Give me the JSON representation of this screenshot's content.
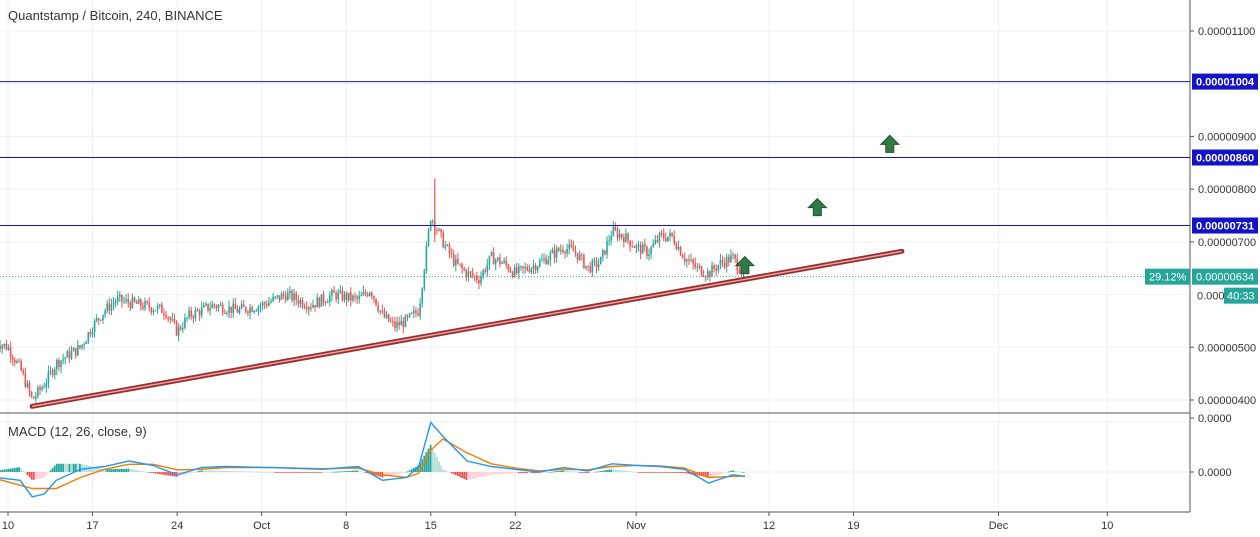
{
  "title": "Quantstamp / Bitcoin, 240, BINANCE",
  "macd_title": "MACD (12, 26, close, 9)",
  "colors": {
    "up": "#26a69a",
    "down": "#ef5350",
    "hline": "#1212c8",
    "trendline": "#9b2a2a",
    "arrow": "#2f7a45",
    "macd": "#2196f3",
    "signal": "#f57c00",
    "grid": "#eef0f3",
    "axis_text": "#333333",
    "price_label": "#26a69a"
  },
  "chart_data": [
    {
      "type": "candlestick",
      "title": "Quantstamp / Bitcoin, 240, BINANCE",
      "y_ticks": [
        "0.00001100",
        "0.00000900",
        "0.00000800",
        "0.00000700",
        "0.00000500",
        "0.00000400"
      ],
      "ylim": [
        3.8e-06,
        1.15e-05
      ],
      "x_ticks": [
        "10",
        "17",
        "24",
        "Oct",
        "8",
        "15",
        "22",
        "Nov",
        "12",
        "19",
        "Dec",
        "10"
      ],
      "horizontal_levels": [
        {
          "value": 1.004e-05,
          "label": "0.00001004"
        },
        {
          "value": 8.6e-06,
          "label": "0.00000860"
        },
        {
          "value": 7.31e-06,
          "label": "0.00000731"
        }
      ],
      "last_price": {
        "value": 6.34e-06,
        "label": "0.00000634",
        "change": "29.12%",
        "countdown": "40:33",
        "partial_label": "0.000"
      },
      "trendline": {
        "from": {
          "x": "Sep 12",
          "y": 3.88e-06
        },
        "to": {
          "x": "Nov 23",
          "y": 6.82e-06
        }
      },
      "arrows_up": [
        {
          "x": "Nov 10",
          "y": 6.55e-06
        },
        {
          "x": "Nov 16",
          "y": 7.65e-06
        },
        {
          "x": "Nov 22",
          "y": 8.85e-06
        }
      ],
      "price_path": [
        {
          "x": "Sep 9",
          "y": 5.1e-06
        },
        {
          "x": "Sep 10",
          "y": 5e-06
        },
        {
          "x": "Sep 11",
          "y": 4.6e-06
        },
        {
          "x": "Sep 12",
          "y": 4e-06
        },
        {
          "x": "Sep 13",
          "y": 4.3e-06
        },
        {
          "x": "Sep 14",
          "y": 4.7e-06
        },
        {
          "x": "Sep 16",
          "y": 5e-06
        },
        {
          "x": "Sep 17",
          "y": 5.4e-06
        },
        {
          "x": "Sep 18",
          "y": 5.7e-06
        },
        {
          "x": "Sep 19",
          "y": 5.9e-06
        },
        {
          "x": "Sep 21",
          "y": 5.8e-06
        },
        {
          "x": "Sep 23",
          "y": 5.7e-06
        },
        {
          "x": "Sep 24",
          "y": 5.3e-06
        },
        {
          "x": "Sep 25",
          "y": 5.6e-06
        },
        {
          "x": "Sep 27",
          "y": 5.8e-06
        },
        {
          "x": "Sep 29",
          "y": 5.7e-06
        },
        {
          "x": "Oct 1",
          "y": 5.8e-06
        },
        {
          "x": "Oct 3",
          "y": 6e-06
        },
        {
          "x": "Oct 5",
          "y": 5.8e-06
        },
        {
          "x": "Oct 7",
          "y": 6e-06
        },
        {
          "x": "Oct 9",
          "y": 5.9e-06
        },
        {
          "x": "Oct 10",
          "y": 6.1e-06
        },
        {
          "x": "Oct 11",
          "y": 5.6e-06
        },
        {
          "x": "Oct 12",
          "y": 5.4e-06
        },
        {
          "x": "Oct 13",
          "y": 5.5e-06
        },
        {
          "x": "Oct 14",
          "y": 5.7e-06
        },
        {
          "x": "Oct 15",
          "y": 7.5e-06
        },
        {
          "x": "Oct 16",
          "y": 7e-06
        },
        {
          "x": "Oct 17",
          "y": 6.6e-06
        },
        {
          "x": "Oct 18",
          "y": 6.4e-06
        },
        {
          "x": "Oct 19",
          "y": 6.3e-06
        },
        {
          "x": "Oct 20",
          "y": 6.7e-06
        },
        {
          "x": "Oct 21",
          "y": 6.6e-06
        },
        {
          "x": "Oct 22",
          "y": 6.4e-06
        },
        {
          "x": "Oct 24",
          "y": 6.6e-06
        },
        {
          "x": "Oct 26",
          "y": 6.9e-06
        },
        {
          "x": "Oct 27",
          "y": 6.8e-06
        },
        {
          "x": "Oct 28",
          "y": 6.5e-06
        },
        {
          "x": "Oct 29",
          "y": 6.6e-06
        },
        {
          "x": "Oct 30",
          "y": 7.2e-06
        },
        {
          "x": "Oct 31",
          "y": 7.1e-06
        },
        {
          "x": "Nov 1",
          "y": 6.9e-06
        },
        {
          "x": "Nov 2",
          "y": 6.8e-06
        },
        {
          "x": "Nov 3",
          "y": 7.1e-06
        },
        {
          "x": "Nov 4",
          "y": 7.1e-06
        },
        {
          "x": "Nov 5",
          "y": 6.7e-06
        },
        {
          "x": "Nov 6",
          "y": 6.5e-06
        },
        {
          "x": "Nov 7",
          "y": 6.4e-06
        },
        {
          "x": "Nov 8",
          "y": 6.6e-06
        },
        {
          "x": "Nov 9",
          "y": 6.7e-06
        },
        {
          "x": "Nov 10",
          "y": 6.34e-06
        }
      ]
    },
    {
      "type": "macd",
      "title": "MACD (12, 26, close, 9)",
      "y_ticks": [
        "0.0000",
        "0.0000"
      ],
      "macd": [
        {
          "x": "Sep 9",
          "y": -0.1
        },
        {
          "x": "Sep 11",
          "y": -0.15
        },
        {
          "x": "Sep 12",
          "y": -0.45
        },
        {
          "x": "Sep 13",
          "y": -0.4
        },
        {
          "x": "Sep 14",
          "y": -0.15
        },
        {
          "x": "Sep 16",
          "y": 0.05
        },
        {
          "x": "Sep 18",
          "y": 0.1
        },
        {
          "x": "Sep 20",
          "y": 0.2
        },
        {
          "x": "Sep 22",
          "y": 0.12
        },
        {
          "x": "Sep 24",
          "y": -0.05
        },
        {
          "x": "Sep 26",
          "y": 0.08
        },
        {
          "x": "Sep 28",
          "y": 0.1
        },
        {
          "x": "Oct 2",
          "y": 0.08
        },
        {
          "x": "Oct 6",
          "y": 0.05
        },
        {
          "x": "Oct 9",
          "y": 0.1
        },
        {
          "x": "Oct 11",
          "y": -0.15
        },
        {
          "x": "Oct 13",
          "y": -0.1
        },
        {
          "x": "Oct 14",
          "y": 0.1
        },
        {
          "x": "Oct 15",
          "y": 0.9
        },
        {
          "x": "Oct 16",
          "y": 0.65
        },
        {
          "x": "Oct 18",
          "y": 0.2
        },
        {
          "x": "Oct 20",
          "y": 0.1
        },
        {
          "x": "Oct 22",
          "y": 0.05
        },
        {
          "x": "Oct 24",
          "y": 0.0
        },
        {
          "x": "Oct 26",
          "y": 0.08
        },
        {
          "x": "Oct 28",
          "y": 0.02
        },
        {
          "x": "Oct 30",
          "y": 0.15
        },
        {
          "x": "Nov 1",
          "y": 0.12
        },
        {
          "x": "Nov 3",
          "y": 0.1
        },
        {
          "x": "Nov 5",
          "y": 0.05
        },
        {
          "x": "Nov 7",
          "y": -0.2
        },
        {
          "x": "Nov 9",
          "y": -0.05
        },
        {
          "x": "Nov 10",
          "y": -0.08
        }
      ],
      "signal": [
        {
          "x": "Sep 9",
          "y": -0.12
        },
        {
          "x": "Sep 12",
          "y": -0.3
        },
        {
          "x": "Sep 14",
          "y": -0.3
        },
        {
          "x": "Sep 16",
          "y": -0.1
        },
        {
          "x": "Sep 18",
          "y": 0.05
        },
        {
          "x": "Sep 20",
          "y": 0.14
        },
        {
          "x": "Sep 22",
          "y": 0.14
        },
        {
          "x": "Sep 24",
          "y": 0.04
        },
        {
          "x": "Sep 26",
          "y": 0.05
        },
        {
          "x": "Sep 28",
          "y": 0.08
        },
        {
          "x": "Oct 2",
          "y": 0.08
        },
        {
          "x": "Oct 6",
          "y": 0.06
        },
        {
          "x": "Oct 9",
          "y": 0.07
        },
        {
          "x": "Oct 11",
          "y": -0.05
        },
        {
          "x": "Oct 13",
          "y": -0.1
        },
        {
          "x": "Oct 14",
          "y": -0.02
        },
        {
          "x": "Oct 15",
          "y": 0.4
        },
        {
          "x": "Oct 16",
          "y": 0.6
        },
        {
          "x": "Oct 18",
          "y": 0.35
        },
        {
          "x": "Oct 20",
          "y": 0.15
        },
        {
          "x": "Oct 22",
          "y": 0.07
        },
        {
          "x": "Oct 24",
          "y": 0.02
        },
        {
          "x": "Oct 26",
          "y": 0.05
        },
        {
          "x": "Oct 28",
          "y": 0.04
        },
        {
          "x": "Oct 30",
          "y": 0.1
        },
        {
          "x": "Nov 1",
          "y": 0.12
        },
        {
          "x": "Nov 3",
          "y": 0.11
        },
        {
          "x": "Nov 5",
          "y": 0.07
        },
        {
          "x": "Nov 7",
          "y": -0.1
        },
        {
          "x": "Nov 9",
          "y": -0.08
        },
        {
          "x": "Nov 10",
          "y": -0.07
        }
      ]
    }
  ]
}
